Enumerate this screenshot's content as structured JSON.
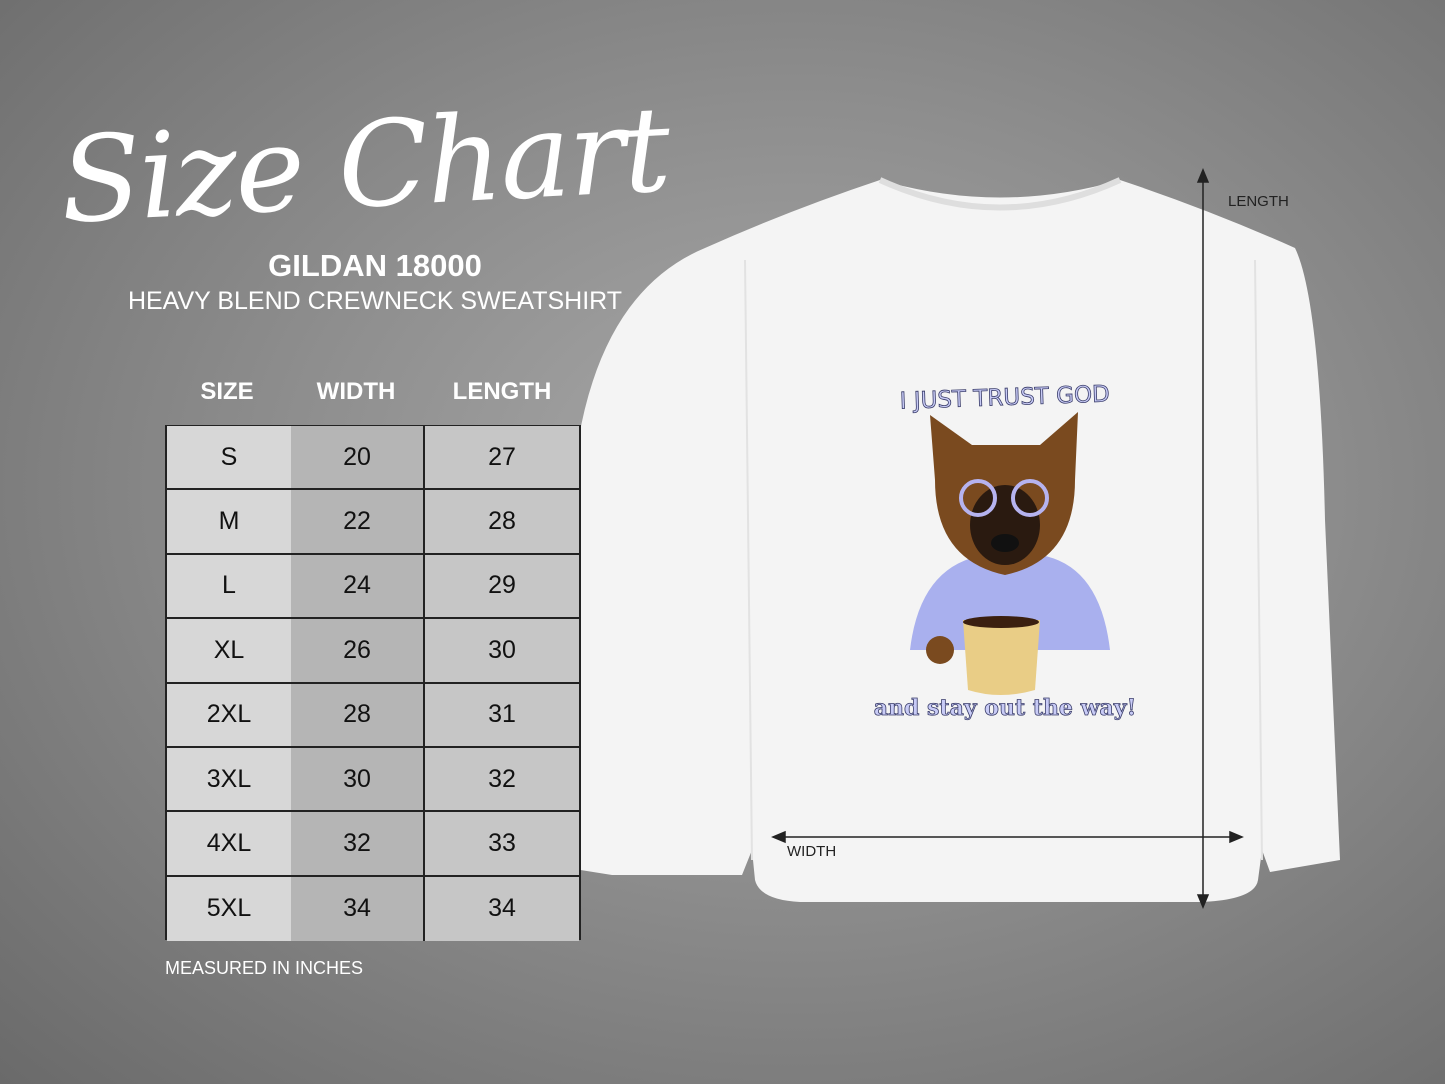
{
  "title": "Size Chart",
  "brand": "GILDAN 18000",
  "subtitle": "HEAVY BLEND CREWNECK SWEATSHIRT",
  "table": {
    "headers": [
      "SIZE",
      "WIDTH",
      "LENGTH"
    ],
    "rows": [
      [
        "S",
        "20",
        "27"
      ],
      [
        "M",
        "22",
        "28"
      ],
      [
        "L",
        "24",
        "29"
      ],
      [
        "XL",
        "26",
        "30"
      ],
      [
        "2XL",
        "28",
        "31"
      ],
      [
        "3XL",
        "30",
        "32"
      ],
      [
        "4XL",
        "32",
        "33"
      ],
      [
        "5XL",
        "34",
        "34"
      ]
    ]
  },
  "note": "MEASURED IN INCHES",
  "garment": {
    "length_label": "LENGTH",
    "width_label": "WIDTH",
    "print_top": "I JUST TRUST GOD",
    "print_bottom": "and stay out the way!",
    "colors": {
      "shirt": "#f4f4f4",
      "print_text": "#a9aef0",
      "pajama": "#a9b0ee",
      "fur": "#8a5424"
    }
  }
}
